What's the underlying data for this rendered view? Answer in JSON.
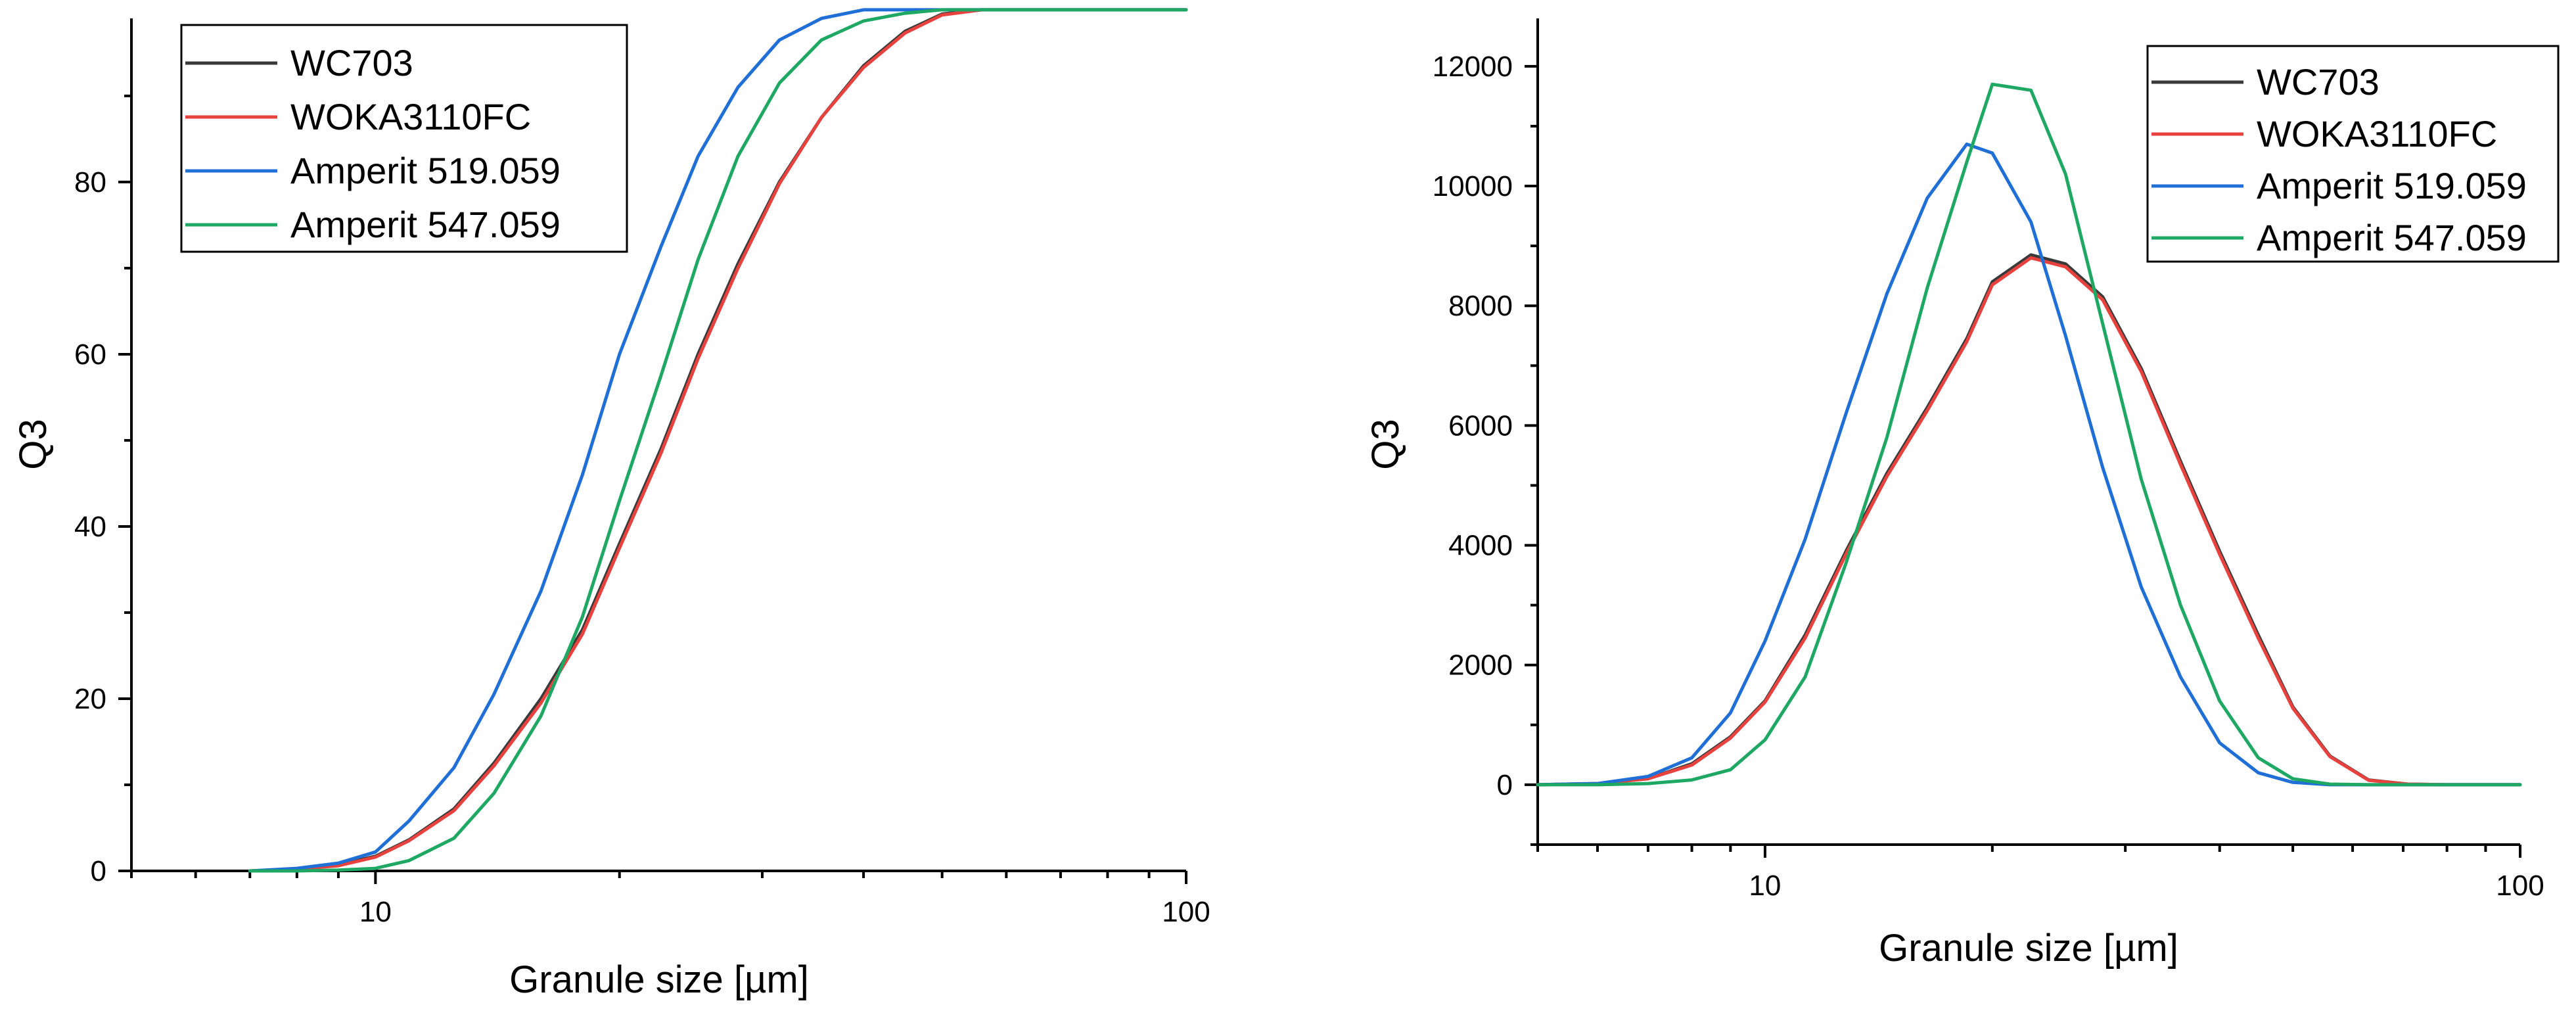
{
  "colors": {
    "WC703": "#3a3a3a",
    "WOKA3110FC": "#e8423f",
    "Amperit 519.059": "#1f6fd6",
    "Amperit 547.059": "#1fa864"
  },
  "chart_data": [
    {
      "type": "line",
      "xscale": "log",
      "xlim": [
        5,
        100
      ],
      "ylim": [
        0,
        99
      ],
      "xlabel": "Granule size [µm]",
      "ylabel": "Q3",
      "xtick_labels": [
        "10",
        "100"
      ],
      "xtick_values": [
        10,
        100
      ],
      "ytick_labels": [
        "0",
        "20",
        "40",
        "60",
        "80"
      ],
      "ytick_values": [
        0,
        20,
        40,
        60,
        80
      ],
      "yminor_values": [
        10,
        30,
        50,
        70,
        90
      ],
      "legend_position": "top-left",
      "x": [
        7,
        8,
        9,
        10,
        11,
        12.5,
        14,
        16,
        18,
        20,
        22.5,
        25,
        28,
        31.5,
        35.5,
        40,
        45,
        50,
        56,
        63,
        71,
        80,
        90,
        100
      ],
      "series": [
        {
          "name": "WC703",
          "values": [
            0,
            0.2,
            0.7,
            1.7,
            3.6,
            7.2,
            12.5,
            20,
            28,
            38,
            49,
            60,
            70.5,
            80,
            87.5,
            93.5,
            97.5,
            99.5,
            100,
            100,
            100,
            100,
            100,
            100
          ]
        },
        {
          "name": "WOKA3110FC",
          "values": [
            0,
            0.2,
            0.6,
            1.6,
            3.5,
            7,
            12.2,
            19.5,
            27.5,
            37.5,
            48.5,
            59.5,
            70,
            79.8,
            87.5,
            93.3,
            97.3,
            99.4,
            100,
            100,
            100,
            100,
            100,
            100
          ]
        },
        {
          "name": "Amperit 519.059",
          "values": [
            0,
            0.3,
            0.9,
            2.2,
            5.8,
            12,
            20.5,
            32.5,
            46,
            60,
            72.5,
            83,
            91,
            96.5,
            99,
            100,
            100,
            100,
            100,
            100,
            100,
            100,
            100,
            100
          ]
        },
        {
          "name": "Amperit 547.059",
          "values": [
            0,
            0,
            0.1,
            0.3,
            1.2,
            3.8,
            9,
            18,
            29.5,
            43,
            57.5,
            71,
            83,
            91.5,
            96.5,
            98.7,
            99.6,
            100,
            100,
            100,
            100,
            100,
            100,
            100
          ]
        }
      ]
    },
    {
      "type": "line",
      "xscale": "log",
      "xlim": [
        5,
        100
      ],
      "ylim": [
        -1000,
        12800
      ],
      "xlabel": "Granule size [µm]",
      "ylabel": "Q3",
      "xtick_labels": [
        "10",
        "100"
      ],
      "xtick_values": [
        10,
        100
      ],
      "ytick_labels": [
        "0",
        "2000",
        "4000",
        "6000",
        "8000",
        "10000",
        "12000"
      ],
      "ytick_values": [
        0,
        2000,
        4000,
        6000,
        8000,
        10000,
        12000
      ],
      "yminor_values": [
        -1000,
        1000,
        3000,
        5000,
        7000,
        9000,
        11000
      ],
      "legend_position": "top-right",
      "x": [
        5,
        6,
        7,
        8,
        9,
        10,
        11.3,
        12.8,
        14.5,
        16.4,
        18.5,
        20,
        22.5,
        25,
        28,
        31.5,
        35.5,
        40,
        45,
        50,
        56,
        63,
        71,
        80,
        90,
        100
      ],
      "series": [
        {
          "name": "WC703",
          "values": [
            0,
            20,
            100,
            350,
            800,
            1400,
            2500,
            3900,
            5200,
            6300,
            7450,
            8400,
            8850,
            8700,
            8150,
            6950,
            5400,
            3900,
            2500,
            1300,
            480,
            80,
            10,
            0,
            0,
            0
          ]
        },
        {
          "name": "WOKA3110FC",
          "values": [
            0,
            20,
            100,
            330,
            780,
            1380,
            2450,
            3850,
            5150,
            6250,
            7400,
            8350,
            8800,
            8650,
            8100,
            6900,
            5350,
            3850,
            2450,
            1280,
            470,
            75,
            10,
            0,
            0,
            0
          ]
        },
        {
          "name": "Amperit 519.059",
          "values": [
            0,
            20,
            140,
            450,
            1200,
            2400,
            4100,
            6200,
            8200,
            9800,
            10700,
            10550,
            9400,
            7500,
            5300,
            3300,
            1800,
            700,
            200,
            40,
            0,
            0,
            0,
            0,
            0,
            0
          ]
        },
        {
          "name": "Amperit 547.059",
          "values": [
            0,
            0,
            20,
            80,
            250,
            750,
            1800,
            3700,
            5800,
            8300,
            10400,
            11700,
            11600,
            10200,
            7700,
            5100,
            3000,
            1400,
            450,
            100,
            10,
            0,
            0,
            0,
            0,
            0
          ]
        }
      ]
    }
  ]
}
